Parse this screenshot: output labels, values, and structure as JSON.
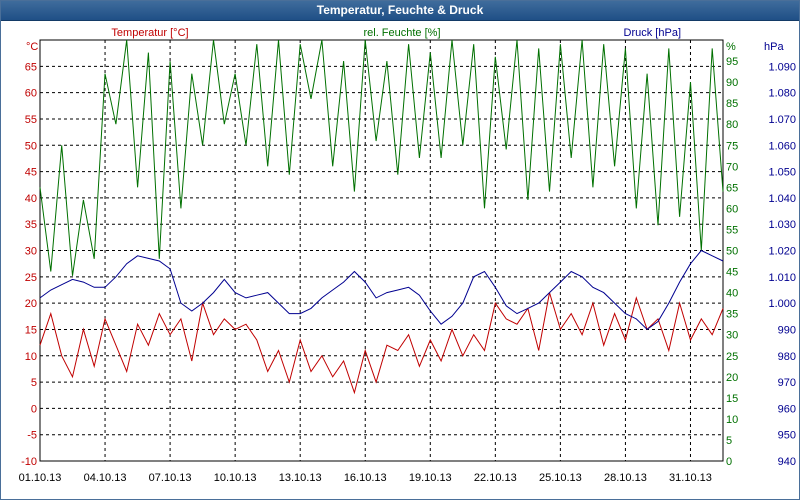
{
  "window": {
    "title": "Temperatur, Feuchte & Druck"
  },
  "chart_data": {
    "type": "line",
    "title": "Temperatur, Feuchte & Druck",
    "x_labels": [
      "01.10.13",
      "04.10.13",
      "07.10.13",
      "10.10.13",
      "13.10.13",
      "16.10.13",
      "19.10.13",
      "22.10.13",
      "25.10.13",
      "28.10.13",
      "31.10.13"
    ],
    "axes": {
      "temperature": {
        "unit": "°C",
        "ticks": [
          "65",
          "60",
          "55",
          "50",
          "45",
          "40",
          "35",
          "30",
          "25",
          "20",
          "15",
          "10",
          "5",
          "0",
          "-5",
          "-10"
        ],
        "range": [
          -10,
          70
        ]
      },
      "humidity": {
        "unit": "%",
        "ticks": [
          "95",
          "90",
          "85",
          "80",
          "75",
          "70",
          "65",
          "60",
          "55",
          "50",
          "45",
          "40",
          "35",
          "30",
          "25",
          "20",
          "15",
          "10",
          "5",
          "0"
        ],
        "range": [
          0,
          100
        ]
      },
      "pressure": {
        "unit": "hPa",
        "ticks": [
          "1.090",
          "1.080",
          "1.070",
          "1.060",
          "1.050",
          "1.040",
          "1.030",
          "1.020",
          "1.010",
          "1.000",
          "990",
          "980",
          "970",
          "960",
          "950",
          "940"
        ],
        "range": [
          940,
          1100
        ]
      }
    },
    "grid": true,
    "series": [
      {
        "name": "Temperatur [°C]",
        "axis": "temperature",
        "color": "#c00000",
        "x": [
          0,
          0.5,
          1,
          1.5,
          2,
          2.5,
          3,
          3.5,
          4,
          4.5,
          5,
          5.5,
          6,
          6.5,
          7,
          7.5,
          8,
          8.5,
          9,
          9.5,
          10,
          10.5,
          11,
          11.5,
          12,
          12.5,
          13,
          13.5,
          14,
          14.5,
          15,
          15.5,
          16,
          16.5,
          17,
          17.5,
          18,
          18.5,
          19,
          19.5,
          20,
          20.5,
          21,
          21.5,
          22,
          22.5,
          23,
          23.5,
          24,
          24.5,
          25,
          25.5,
          26,
          26.5,
          27,
          27.5,
          28,
          28.5,
          29,
          29.5,
          30,
          30.5,
          31,
          31.5
        ],
        "y": [
          12,
          18,
          10,
          6,
          15,
          8,
          17,
          12,
          7,
          16,
          12,
          18,
          14,
          17,
          9,
          20,
          14,
          17,
          15,
          16,
          13,
          7,
          11,
          5,
          13,
          7,
          10,
          6,
          9,
          3,
          11,
          5,
          12,
          11,
          14,
          8,
          13,
          9,
          15,
          10,
          14,
          11,
          20,
          17,
          16,
          19,
          11,
          22,
          15,
          18,
          14,
          20,
          12,
          18,
          13,
          21,
          15,
          17,
          11,
          20,
          13,
          17,
          14,
          19
        ]
      },
      {
        "name": "rel. Feuchte [%]",
        "axis": "humidity",
        "color": "#007000",
        "x": [
          0,
          0.5,
          1,
          1.5,
          2,
          2.5,
          3,
          3.5,
          4,
          4.5,
          5,
          5.5,
          6,
          6.5,
          7,
          7.5,
          8,
          8.5,
          9,
          9.5,
          10,
          10.5,
          11,
          11.5,
          12,
          12.5,
          13,
          13.5,
          14,
          14.5,
          15,
          15.5,
          16,
          16.5,
          17,
          17.5,
          18,
          18.5,
          19,
          19.5,
          20,
          20.5,
          21,
          21.5,
          22,
          22.5,
          23,
          23.5,
          24,
          24.5,
          25,
          25.5,
          26,
          26.5,
          27,
          27.5,
          28,
          28.5,
          29,
          29.5,
          30,
          30.5,
          31,
          31.5
        ],
        "y": [
          65,
          45,
          75,
          44,
          62,
          48,
          92,
          80,
          100,
          65,
          97,
          48,
          95,
          60,
          92,
          75,
          100,
          80,
          92,
          75,
          99,
          70,
          100,
          68,
          99,
          86,
          100,
          70,
          95,
          64,
          100,
          76,
          95,
          68,
          99,
          72,
          97,
          72,
          100,
          75,
          99,
          60,
          96,
          74,
          100,
          62,
          98,
          64,
          99,
          72,
          100,
          65,
          99,
          70,
          98,
          60,
          92,
          56,
          98,
          58,
          90,
          50,
          98,
          64
        ]
      },
      {
        "name": "Druck [hPa]",
        "axis": "pressure",
        "color": "#000090",
        "x": [
          0,
          0.5,
          1,
          1.5,
          2,
          2.5,
          3,
          3.5,
          4,
          4.5,
          5,
          5.5,
          6,
          6.5,
          7,
          7.5,
          8,
          8.5,
          9,
          9.5,
          10,
          10.5,
          11,
          11.5,
          12,
          12.5,
          13,
          13.5,
          14,
          14.5,
          15,
          15.5,
          16,
          16.5,
          17,
          17.5,
          18,
          18.5,
          19,
          19.5,
          20,
          20.5,
          21,
          21.5,
          22,
          22.5,
          23,
          23.5,
          24,
          24.5,
          25,
          25.5,
          26,
          26.5,
          27,
          27.5,
          28,
          28.5,
          29,
          29.5,
          30,
          30.5,
          31,
          31.5
        ],
        "y": [
          1002,
          1005,
          1007,
          1009,
          1008,
          1006,
          1006,
          1010,
          1015,
          1018,
          1017,
          1016,
          1013,
          1000,
          997,
          1000,
          1004,
          1009,
          1004,
          1002,
          1003,
          1004,
          1000,
          996,
          996,
          998,
          1002,
          1005,
          1008,
          1012,
          1008,
          1002,
          1004,
          1005,
          1006,
          1003,
          997,
          992,
          995,
          1000,
          1010,
          1012,
          1006,
          999,
          996,
          998,
          1000,
          1004,
          1008,
          1012,
          1010,
          1006,
          1004,
          1000,
          996,
          994,
          990,
          993,
          1000,
          1008,
          1015,
          1020,
          1018,
          1016
        ]
      }
    ]
  }
}
